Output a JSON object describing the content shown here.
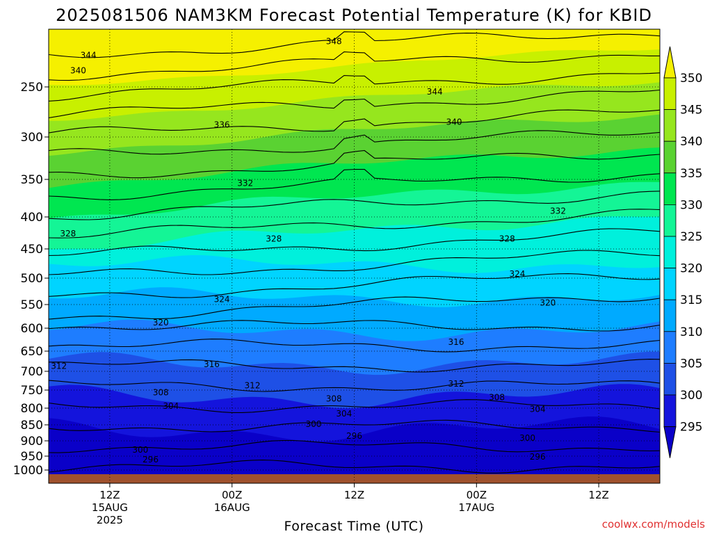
{
  "chart_data": {
    "type": "heatmap",
    "title": "2025081506 NAM3KM Forecast Potential Temperature (K) for KBID",
    "xlabel": "Forecast Time (UTC)",
    "ylabel": "",
    "x_ticks": [
      {
        "label": "12Z",
        "sub1": "15AUG",
        "sub2": "2025",
        "hour": 6
      },
      {
        "label": "00Z",
        "sub1": "16AUG",
        "sub2": "",
        "hour": 18
      },
      {
        "label": "12Z",
        "sub1": "",
        "sub2": "",
        "hour": 30
      },
      {
        "label": "00Z",
        "sub1": "17AUG",
        "sub2": "",
        "hour": 42
      },
      {
        "label": "12Z",
        "sub1": "",
        "sub2": "",
        "hour": 54
      }
    ],
    "xlim_hours": [
      0,
      60
    ],
    "y_ticks": [
      "250",
      "300",
      "350",
      "400",
      "450",
      "500",
      "550",
      "600",
      "650",
      "700",
      "750",
      "800",
      "850",
      "900",
      "950",
      "1000"
    ],
    "pressure_levels": [
      250,
      300,
      350,
      400,
      450,
      500,
      550,
      600,
      650,
      700,
      750,
      800,
      850,
      900,
      950,
      1000
    ],
    "colorbar_labels": [
      "350",
      "345",
      "340",
      "335",
      "330",
      "325",
      "320",
      "315",
      "310",
      "305",
      "300",
      "295"
    ],
    "colorbar_colors": [
      "#f5f000",
      "#c8f000",
      "#96e61e",
      "#5ad232",
      "#00e650",
      "#14f596",
      "#00f0dc",
      "#00d4ff",
      "#00aaff",
      "#1e7dff",
      "#1e50e6",
      "#1414dc",
      "#0a00c8"
    ],
    "contour_labels": [
      {
        "text": "348",
        "h": 28.0,
        "p": 160
      },
      {
        "text": "344",
        "h": 3.9,
        "p": 188
      },
      {
        "text": "344",
        "h": 37.9,
        "p": 255
      },
      {
        "text": "340",
        "h": 2.9,
        "p": 218
      },
      {
        "text": "340",
        "h": 39.8,
        "p": 285
      },
      {
        "text": "336",
        "h": 17.0,
        "p": 288
      },
      {
        "text": "332",
        "h": 19.3,
        "p": 355
      },
      {
        "text": "332",
        "h": 50.0,
        "p": 392
      },
      {
        "text": "328",
        "h": 1.9,
        "p": 426
      },
      {
        "text": "328",
        "h": 22.1,
        "p": 434
      },
      {
        "text": "328",
        "h": 45.0,
        "p": 434
      },
      {
        "text": "324",
        "h": 17.0,
        "p": 540
      },
      {
        "text": "324",
        "h": 46.0,
        "p": 493
      },
      {
        "text": "320",
        "h": 11.0,
        "p": 588
      },
      {
        "text": "320",
        "h": 49.0,
        "p": 547
      },
      {
        "text": "316",
        "h": 16.0,
        "p": 683
      },
      {
        "text": "316",
        "h": 40.0,
        "p": 630
      },
      {
        "text": "312",
        "h": 1.0,
        "p": 687
      },
      {
        "text": "312",
        "h": 20.0,
        "p": 738
      },
      {
        "text": "312",
        "h": 40.0,
        "p": 733
      },
      {
        "text": "308",
        "h": 11.0,
        "p": 757
      },
      {
        "text": "308",
        "h": 28.0,
        "p": 774
      },
      {
        "text": "308",
        "h": 44.0,
        "p": 770
      },
      {
        "text": "304",
        "h": 12.0,
        "p": 794
      },
      {
        "text": "304",
        "h": 29.0,
        "p": 817
      },
      {
        "text": "304",
        "h": 48.0,
        "p": 803
      },
      {
        "text": "300",
        "h": 26.0,
        "p": 848
      },
      {
        "text": "300",
        "h": 9.0,
        "p": 929
      },
      {
        "text": "300",
        "h": 47.0,
        "p": 891
      },
      {
        "text": "296",
        "h": 30.0,
        "p": 885
      },
      {
        "text": "296",
        "h": 10.0,
        "p": 962
      },
      {
        "text": "296",
        "h": 48.0,
        "p": 952
      }
    ]
  },
  "watermark": "coolwx.com/models"
}
